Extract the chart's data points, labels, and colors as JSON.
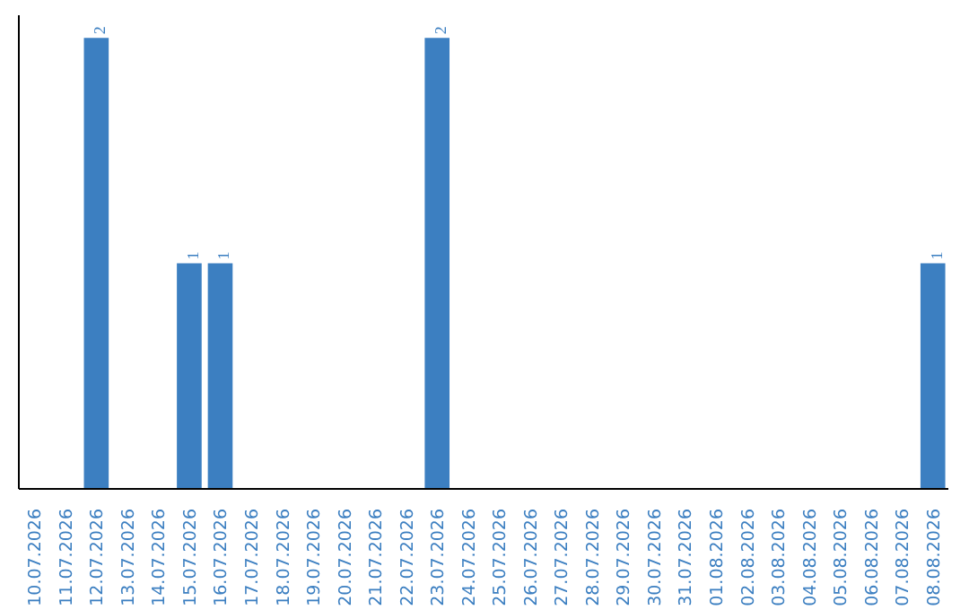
{
  "chart_data": {
    "type": "bar",
    "categories": [
      "10.07.2026",
      "11.07.2026",
      "12.07.2026",
      "13.07.2026",
      "14.07.2026",
      "15.07.2026",
      "16.07.2026",
      "17.07.2026",
      "18.07.2026",
      "19.07.2026",
      "20.07.2026",
      "21.07.2026",
      "22.07.2026",
      "23.07.2026",
      "24.07.2026",
      "25.07.2026",
      "26.07.2026",
      "27.07.2026",
      "28.07.2026",
      "29.07.2026",
      "30.07.2026",
      "31.07.2026",
      "01.08.2026",
      "02.08.2026",
      "03.08.2026",
      "04.08.2026",
      "05.08.2026",
      "06.08.2026",
      "07.08.2026",
      "08.08.2026"
    ],
    "values": [
      0,
      0,
      2,
      0,
      0,
      1,
      1,
      0,
      0,
      0,
      0,
      0,
      0,
      2,
      0,
      0,
      0,
      0,
      0,
      0,
      0,
      0,
      0,
      0,
      0,
      0,
      0,
      0,
      0,
      1
    ],
    "value_labels": [
      null,
      null,
      "2",
      null,
      null,
      "1",
      "1",
      null,
      null,
      null,
      null,
      null,
      null,
      "2",
      null,
      null,
      null,
      null,
      null,
      null,
      null,
      null,
      null,
      null,
      null,
      null,
      null,
      null,
      null,
      "1"
    ],
    "color": "#3c7fc1"
  }
}
